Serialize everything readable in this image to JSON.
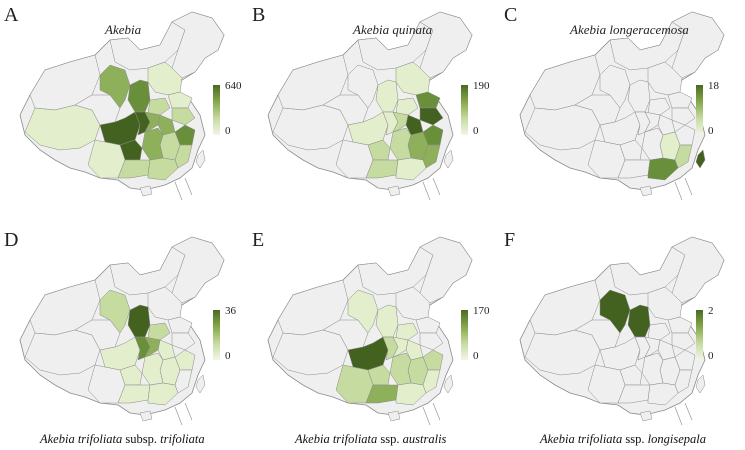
{
  "panels": [
    {
      "letter": "A",
      "title": "Akebia",
      "legend_max": "640",
      "legend_min": "0",
      "scheme": "broad",
      "caption_parts": []
    },
    {
      "letter": "B",
      "title": "Akebia quinata",
      "legend_max": "190",
      "legend_min": "0",
      "scheme": "east",
      "caption_parts": []
    },
    {
      "letter": "C",
      "title": "Akebia longeracemosa",
      "legend_max": "18",
      "legend_min": "0",
      "scheme": "south",
      "caption_parts": []
    },
    {
      "letter": "D",
      "title": "",
      "legend_max": "36",
      "legend_min": "0",
      "scheme": "central",
      "caption_parts": [
        {
          "text": "Akebia trifoliata",
          "italic": true
        },
        {
          "text": " subsp. ",
          "italic": false
        },
        {
          "text": "trifoliata",
          "italic": true
        }
      ]
    },
    {
      "letter": "E",
      "title": "",
      "legend_max": "170",
      "legend_min": "0",
      "scheme": "southwest",
      "caption_parts": [
        {
          "text": "Akebia trifoliata",
          "italic": true
        },
        {
          "text": " ssp. ",
          "italic": false
        },
        {
          "text": "australis",
          "italic": true
        }
      ]
    },
    {
      "letter": "F",
      "title": "",
      "legend_max": "2",
      "legend_min": "0",
      "scheme": "gansu",
      "caption_parts": [
        {
          "text": "Akebia trifoliata",
          "italic": true
        },
        {
          "text": " ssp.  ",
          "italic": false
        },
        {
          "text": "longisepala",
          "italic": true
        }
      ]
    }
  ],
  "colors": {
    "none": "#efefef",
    "low": "#e3eecc",
    "mid_low": "#c5dba0",
    "mid": "#8fb05a",
    "high": "#6a8f3a",
    "max": "#44621f",
    "border": "#8a8a8a"
  }
}
